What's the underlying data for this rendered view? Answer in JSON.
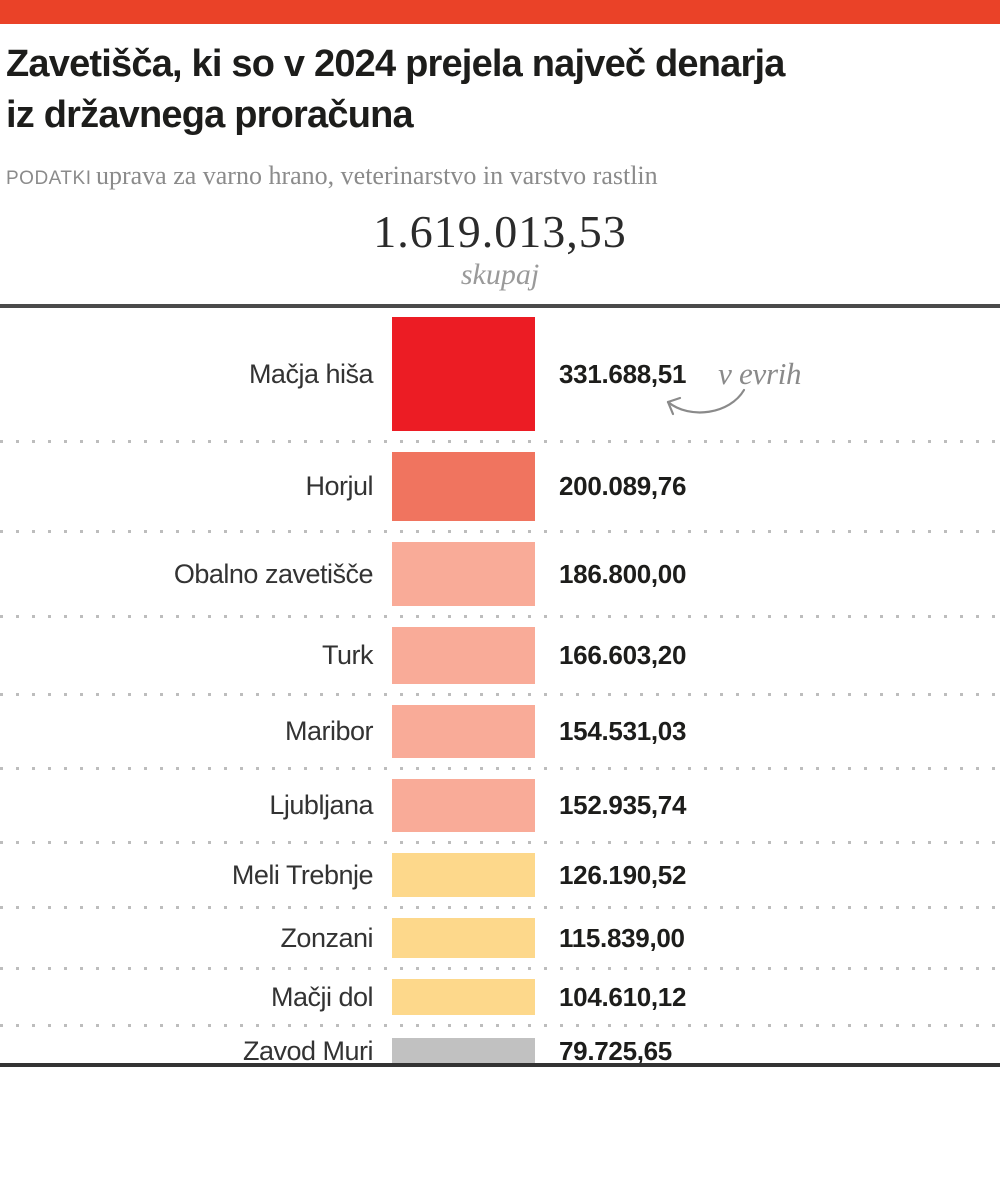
{
  "colors": {
    "accent": "#ea4228",
    "top_rule": "#4a4a4a",
    "bottom_rule": "#333333"
  },
  "header": {
    "title_line1": "Zavetišča, ki so v 2024 prejela največ denarja",
    "title_line2": "iz državnega proračuna",
    "source_kicker": "PODATKI",
    "source_text": "uprava za varno hrano, veterinarstvo in varstvo rastlin"
  },
  "total": {
    "value": "1.619.013,53",
    "label": "skupaj"
  },
  "annotation": {
    "text": "v evrih"
  },
  "chart_data": {
    "type": "bar",
    "title": "Zavetišča, ki so v 2024 prejela največ denarja iz državnega proračuna",
    "source": "uprava za varno hrano, veterinarstvo in varstvo rastlin",
    "unit_note": "v evrih",
    "unit": "EUR",
    "total": {
      "display": "1.619.013,53",
      "value": 1619013.53,
      "label": "skupaj"
    },
    "legend": false,
    "grid": false,
    "rows": [
      {
        "label": "Mačja hiša",
        "display": "331.688,51",
        "value": 331688.51,
        "color": "#ec1c24"
      },
      {
        "label": "Horjul",
        "display": "200.089,76",
        "value": 200089.76,
        "color": "#f0745f"
      },
      {
        "label": "Obalno zavetišče",
        "display": "186.800,00",
        "value": 186800.0,
        "color": "#f9ab98"
      },
      {
        "label": "Turk",
        "display": "166.603,20",
        "value": 166603.2,
        "color": "#f9ab98"
      },
      {
        "label": "Maribor",
        "display": "154.531,03",
        "value": 154531.03,
        "color": "#f9ab98"
      },
      {
        "label": "Ljubljana",
        "display": "152.935,74",
        "value": 152935.74,
        "color": "#f9ab98"
      },
      {
        "label": "Meli Trebnje",
        "display": "126.190,52",
        "value": 126190.52,
        "color": "#fdd88b"
      },
      {
        "label": "Zonzani",
        "display": "115.839,00",
        "value": 115839.0,
        "color": "#fdd88b"
      },
      {
        "label": "Mačji dol",
        "display": "104.610,12",
        "value": 104610.12,
        "color": "#fdd88b"
      },
      {
        "label": "Zavod Muri",
        "display": "79.725,65",
        "value": 79725.65,
        "color": "#c1c1c1"
      }
    ]
  }
}
